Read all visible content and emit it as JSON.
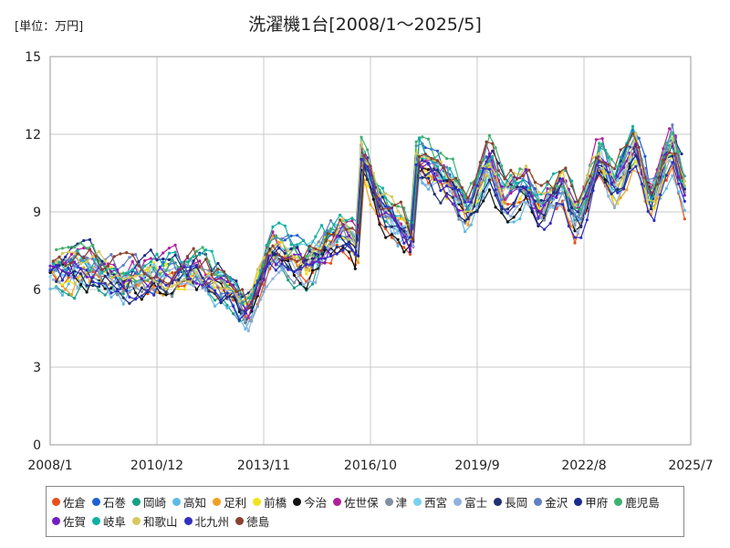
{
  "unit_label": "[単位：万円]",
  "chart_data": {
    "type": "line",
    "title": "洗濯機1台[2008/1～2025/5]",
    "xlabel": "",
    "ylabel": "",
    "x_range": [
      "2008/1",
      "2025/7"
    ],
    "xticks": [
      "2008/1",
      "2010/12",
      "2013/11",
      "2016/10",
      "2019/9",
      "2022/8",
      "2025/7"
    ],
    "ylim": [
      0,
      15
    ],
    "yticks": [
      0,
      3,
      6,
      9,
      12,
      15
    ],
    "grid": true,
    "legend_position": "bottom",
    "series": [
      {
        "name": "佐倉",
        "color": "#e8501e"
      },
      {
        "name": "石巻",
        "color": "#2060d0"
      },
      {
        "name": "岡崎",
        "color": "#17a085"
      },
      {
        "name": "高知",
        "color": "#5fb8e6"
      },
      {
        "name": "足利",
        "color": "#f0a020"
      },
      {
        "name": "前橋",
        "color": "#f2e21a"
      },
      {
        "name": "今治",
        "color": "#111111"
      },
      {
        "name": "佐世保",
        "color": "#b0209a"
      },
      {
        "name": "津",
        "color": "#8090a0"
      },
      {
        "name": "西宮",
        "color": "#7ad0f0"
      },
      {
        "name": "富士",
        "color": "#90b0e0"
      },
      {
        "name": "長岡",
        "color": "#203070"
      },
      {
        "name": "金沢",
        "color": "#6080c0"
      },
      {
        "name": "甲府",
        "color": "#1a2c8a"
      },
      {
        "name": "鹿児島",
        "color": "#40b070"
      },
      {
        "name": "佐賀",
        "color": "#7020c0"
      },
      {
        "name": "岐阜",
        "color": "#10b0a0"
      },
      {
        "name": "和歌山",
        "color": "#d8c860"
      },
      {
        "name": "北九州",
        "color": "#3030c0"
      },
      {
        "name": "徳島",
        "color": "#8a4030"
      }
    ],
    "approx_level": {
      "x": [
        "2008/1",
        "2009/1",
        "2010/1",
        "2011/1",
        "2012/1",
        "2013/1",
        "2013/6",
        "2014/1",
        "2015/1",
        "2016/1",
        "2016/6",
        "2016/7",
        "2017/1",
        "2017/12",
        "2018/1",
        "2019/1",
        "2019/6",
        "2020/1",
        "2020/6",
        "2021/1",
        "2021/6",
        "2022/1",
        "2022/6",
        "2023/1",
        "2023/6",
        "2024/1",
        "2024/6",
        "2025/1",
        "2025/5"
      ],
      "y": [
        6.8,
        6.9,
        6.4,
        6.6,
        6.6,
        6.0,
        5.2,
        7.6,
        7.0,
        8.2,
        7.6,
        11.3,
        9.2,
        8.0,
        11.2,
        10.0,
        9.0,
        11.0,
        9.6,
        10.2,
        9.1,
        10.1,
        8.6,
        11.2,
        9.9,
        11.6,
        9.4,
        11.6,
        10.0
      ]
    }
  }
}
